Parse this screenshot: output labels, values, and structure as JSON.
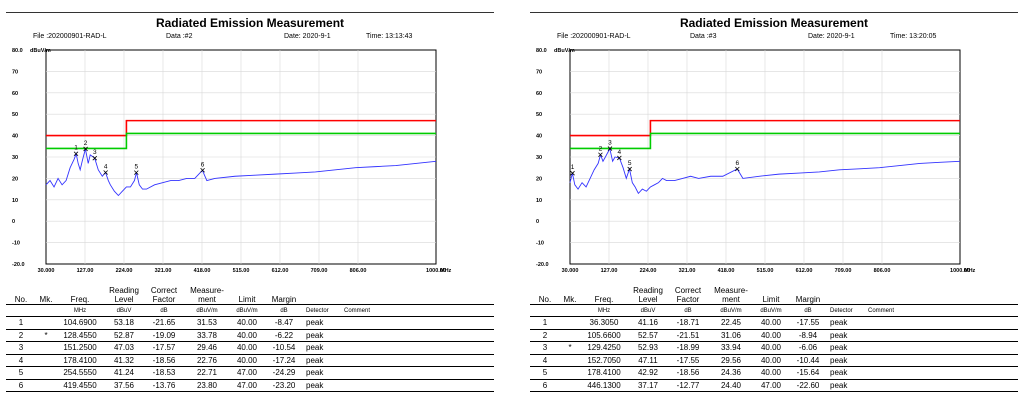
{
  "reports": [
    {
      "title": "Radiated Emission Measurement",
      "file": "File :202000901-RAD-L",
      "data_no": "Data :#2",
      "date": "Date: 2020-9-1",
      "time": "Time: 13:13:43",
      "y_unit": "dBuV/m",
      "x_unit": "MHz",
      "table": {
        "headers": [
          "No.",
          "Mk.",
          "Freq.",
          "Reading Level",
          "Correct Factor",
          "Measure-ment",
          "Limit",
          "Margin",
          "",
          ""
        ],
        "header_lines": [
          [
            "No."
          ],
          [
            "Mk."
          ],
          [
            "Freq."
          ],
          [
            "Reading",
            "Level"
          ],
          [
            "Correct",
            "Factor"
          ],
          [
            "Measure-",
            "ment"
          ],
          [
            "Limit"
          ],
          [
            "Margin"
          ],
          [
            ""
          ],
          [
            ""
          ]
        ],
        "units": [
          "",
          "",
          "MHz",
          "dBuV",
          "dB",
          "dBuV/m",
          "dBuV/m",
          "dB",
          "Detector",
          "Comment"
        ],
        "rows": [
          [
            "1",
            "",
            "104.6900",
            "53.18",
            "-21.65",
            "31.53",
            "40.00",
            "-8.47",
            "peak",
            ""
          ],
          [
            "2",
            "*",
            "128.4550",
            "52.87",
            "-19.09",
            "33.78",
            "40.00",
            "-6.22",
            "peak",
            ""
          ],
          [
            "3",
            "",
            "151.2500",
            "47.03",
            "-17.57",
            "29.46",
            "40.00",
            "-10.54",
            "peak",
            ""
          ],
          [
            "4",
            "",
            "178.4100",
            "41.32",
            "-18.56",
            "22.76",
            "40.00",
            "-17.24",
            "peak",
            ""
          ],
          [
            "5",
            "",
            "254.5550",
            "41.24",
            "-18.53",
            "22.71",
            "47.00",
            "-24.29",
            "peak",
            ""
          ],
          [
            "6",
            "",
            "419.4550",
            "37.56",
            "-13.76",
            "23.80",
            "47.00",
            "-23.20",
            "peak",
            ""
          ]
        ]
      }
    },
    {
      "title": "Radiated Emission Measurement",
      "file": "File :202000901-RAD-L",
      "data_no": "Data :#3",
      "date": "Date: 2020-9-1",
      "time": "Time: 13:20:05",
      "y_unit": "dBuV/m",
      "x_unit": "MHz",
      "table": {
        "headers": [
          "No.",
          "Mk.",
          "Freq.",
          "Reading Level",
          "Correct Factor",
          "Measure-ment",
          "Limit",
          "Margin",
          "",
          ""
        ],
        "header_lines": [
          [
            "No."
          ],
          [
            "Mk."
          ],
          [
            "Freq."
          ],
          [
            "Reading",
            "Level"
          ],
          [
            "Correct",
            "Factor"
          ],
          [
            "Measure-",
            "ment"
          ],
          [
            "Limit"
          ],
          [
            "Margin"
          ],
          [
            ""
          ],
          [
            ""
          ]
        ],
        "units": [
          "",
          "",
          "MHz",
          "dBuV",
          "dB",
          "dBuV/m",
          "dBuV/m",
          "dB",
          "Detector",
          "Comment"
        ],
        "rows": [
          [
            "1",
            "",
            "36.3050",
            "41.16",
            "-18.71",
            "22.45",
            "40.00",
            "-17.55",
            "peak",
            ""
          ],
          [
            "2",
            "",
            "105.6600",
            "52.57",
            "-21.51",
            "31.06",
            "40.00",
            "-8.94",
            "peak",
            ""
          ],
          [
            "3",
            "*",
            "129.4250",
            "52.93",
            "-18.99",
            "33.94",
            "40.00",
            "-6.06",
            "peak",
            ""
          ],
          [
            "4",
            "",
            "152.7050",
            "47.11",
            "-17.55",
            "29.56",
            "40.00",
            "-10.44",
            "peak",
            ""
          ],
          [
            "5",
            "",
            "178.4100",
            "42.92",
            "-18.56",
            "24.36",
            "40.00",
            "-15.64",
            "peak",
            ""
          ],
          [
            "6",
            "",
            "446.1300",
            "37.17",
            "-12.77",
            "24.40",
            "47.00",
            "-22.60",
            "peak",
            ""
          ]
        ]
      }
    }
  ],
  "chart_data": [
    {
      "type": "line",
      "title": "Radiated Emission Measurement",
      "xlabel": "MHz",
      "ylabel": "dBuV/m",
      "xlim": [
        30,
        1000
      ],
      "ylim": [
        -20,
        80
      ],
      "x_ticks": [
        30,
        127,
        224,
        321,
        418,
        515,
        612,
        709,
        806,
        1000
      ],
      "x_tick_labels": [
        "30.000",
        "127.00",
        "224.00",
        "321.00",
        "418.00",
        "515.00",
        "612.00",
        "709.00",
        "806.00",
        "1000.00"
      ],
      "y_ticks": [
        -20,
        -10,
        0,
        10,
        20,
        30,
        40,
        50,
        60,
        70,
        80
      ],
      "y_tick_labels": [
        "-20.0",
        "-10",
        "0",
        "10",
        "20",
        "30",
        "40",
        "50",
        "60",
        "70",
        "80.0"
      ],
      "grid": true,
      "limit_lines": [
        {
          "color": "#ff0000",
          "points": [
            [
              30,
              40
            ],
            [
              230,
              40
            ],
            [
              230,
              47
            ],
            [
              1000,
              47
            ]
          ]
        },
        {
          "color": "#00cc00",
          "points": [
            [
              30,
              34
            ],
            [
              230,
              34
            ],
            [
              230,
              41
            ],
            [
              1000,
              41
            ]
          ]
        }
      ],
      "series": [
        {
          "color": "#3333ff",
          "x": [
            30,
            40,
            50,
            60,
            70,
            80,
            90,
            100,
            105,
            110,
            115,
            120,
            128,
            135,
            140,
            151,
            160,
            170,
            178,
            185,
            190,
            200,
            210,
            220,
            230,
            240,
            250,
            255,
            262,
            270,
            280,
            300,
            320,
            340,
            360,
            380,
            400,
            419,
            430,
            450,
            500,
            550,
            600,
            650,
            700,
            750,
            800,
            850,
            900,
            950,
            1000
          ],
          "y": [
            17,
            19,
            16,
            20,
            17,
            19,
            25,
            29,
            31.5,
            27,
            24,
            28,
            33.8,
            27,
            31,
            29.5,
            24,
            21,
            22.8,
            19,
            17,
            14,
            12,
            14,
            16,
            16,
            19,
            22.7,
            17,
            15,
            15,
            17,
            18,
            19,
            19,
            20,
            20,
            23.8,
            19,
            20,
            21,
            21.5,
            22,
            22.5,
            23,
            24,
            25,
            25.5,
            26,
            27,
            28
          ]
        }
      ],
      "markers": [
        {
          "no": "1",
          "x": 104.69,
          "y": 31.53
        },
        {
          "no": "2",
          "x": 128.455,
          "y": 33.78
        },
        {
          "no": "3",
          "x": 151.25,
          "y": 29.46
        },
        {
          "no": "4",
          "x": 178.41,
          "y": 22.76
        },
        {
          "no": "5",
          "x": 254.555,
          "y": 22.71
        },
        {
          "no": "6",
          "x": 419.455,
          "y": 23.8
        }
      ]
    },
    {
      "type": "line",
      "title": "Radiated Emission Measurement",
      "xlabel": "MHz",
      "ylabel": "dBuV/m",
      "xlim": [
        30,
        1000
      ],
      "ylim": [
        -20,
        80
      ],
      "x_ticks": [
        30,
        127,
        224,
        321,
        418,
        515,
        612,
        709,
        806,
        1000
      ],
      "x_tick_labels": [
        "30.000",
        "127.00",
        "224.00",
        "321.00",
        "418.00",
        "515.00",
        "612.00",
        "709.00",
        "806.00",
        "1000.00"
      ],
      "y_ticks": [
        -20,
        -10,
        0,
        10,
        20,
        30,
        40,
        50,
        60,
        70,
        80
      ],
      "y_tick_labels": [
        "-20.0",
        "-10",
        "0",
        "10",
        "20",
        "30",
        "40",
        "50",
        "60",
        "70",
        "80.0"
      ],
      "grid": true,
      "limit_lines": [
        {
          "color": "#ff0000",
          "points": [
            [
              30,
              40
            ],
            [
              230,
              40
            ],
            [
              230,
              47
            ],
            [
              1000,
              47
            ]
          ]
        },
        {
          "color": "#00cc00",
          "points": [
            [
              30,
              34
            ],
            [
              230,
              34
            ],
            [
              230,
              41
            ],
            [
              1000,
              41
            ]
          ]
        }
      ],
      "series": [
        {
          "color": "#3333ff",
          "x": [
            30,
            36,
            42,
            50,
            60,
            70,
            80,
            90,
            100,
            106,
            112,
            118,
            129,
            136,
            142,
            153,
            162,
            170,
            178,
            185,
            192,
            200,
            210,
            220,
            230,
            240,
            250,
            260,
            270,
            290,
            310,
            330,
            350,
            380,
            410,
            446,
            460,
            500,
            550,
            600,
            650,
            700,
            750,
            800,
            850,
            900,
            950,
            1000
          ],
          "y": [
            18,
            22.4,
            17,
            15,
            18,
            16,
            20,
            24,
            27,
            31,
            28,
            30,
            33.9,
            28,
            30,
            29.5,
            25,
            20,
            24.4,
            18,
            16,
            13,
            15,
            14,
            16,
            17,
            18,
            20,
            19,
            19,
            20,
            21,
            20,
            21,
            21,
            24.4,
            20,
            21,
            22,
            22.5,
            23,
            24,
            24.5,
            25,
            26,
            27,
            27.5,
            28
          ]
        }
      ],
      "markers": [
        {
          "no": "1",
          "x": 36.305,
          "y": 22.45
        },
        {
          "no": "2",
          "x": 105.66,
          "y": 31.06
        },
        {
          "no": "3",
          "x": 129.425,
          "y": 33.94
        },
        {
          "no": "4",
          "x": 152.705,
          "y": 29.56
        },
        {
          "no": "5",
          "x": 178.41,
          "y": 24.36
        },
        {
          "no": "6",
          "x": 446.13,
          "y": 24.4
        }
      ]
    }
  ]
}
